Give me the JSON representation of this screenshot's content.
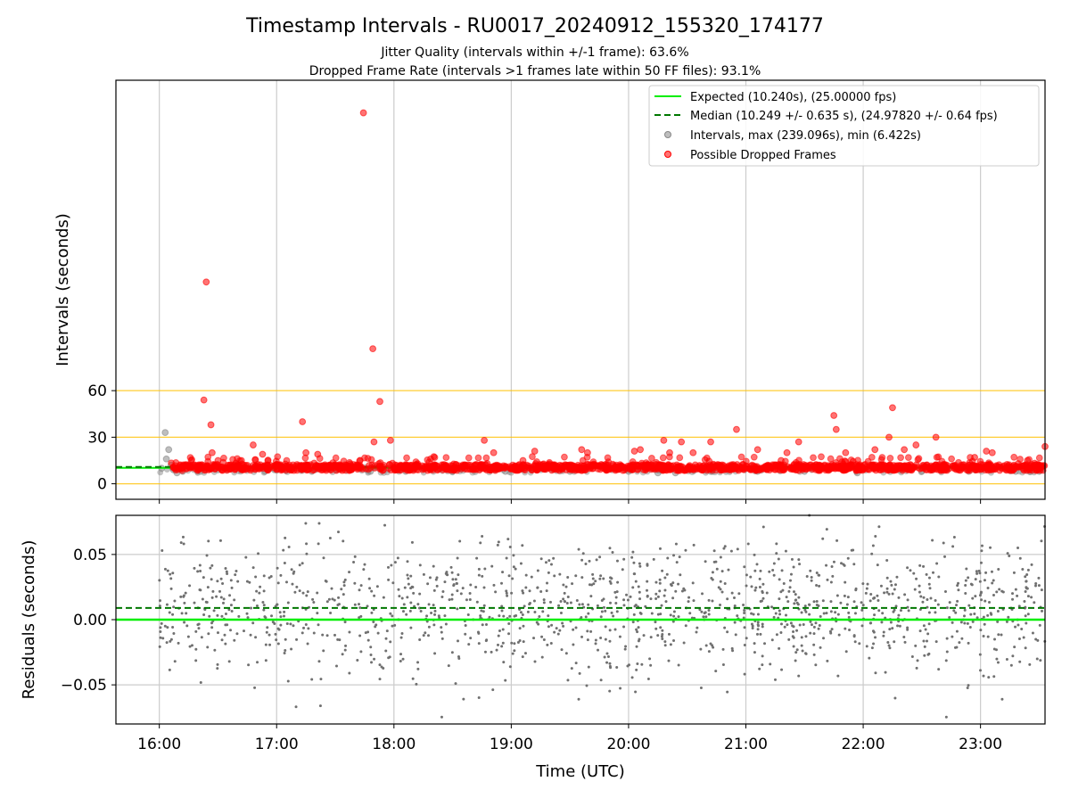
{
  "figure": {
    "title": "Timestamp Intervals - RU0017_20240912_155320_174177",
    "subtitle_1": "Jitter Quality (intervals within +/-1 frame): 63.6%",
    "subtitle_2": "Dropped Frame Rate (intervals >1 frames late within 50 FF files): 93.1%"
  },
  "colors": {
    "expected": "#00ee00",
    "median": "#007700",
    "intervals": "#888888",
    "dropped": "#ff0000",
    "threshold": "#ffc000",
    "residuals": "#707070",
    "grid": "#cccccc"
  },
  "chart_data": [
    {
      "type": "scatter",
      "name": "intervals-panel",
      "xlabel": "",
      "ylabel": "Intervals (seconds)",
      "x_unit": "hours UTC",
      "xlim": [
        15.63,
        23.55
      ],
      "ylim": [
        -10,
        260
      ],
      "yticks": [
        0,
        30,
        60
      ],
      "ytick_labels": [
        "0",
        "30",
        "60"
      ],
      "xticks": [
        16,
        17,
        18,
        19,
        20,
        21,
        22,
        23
      ],
      "xtick_labels": [
        "16:00",
        "17:00",
        "18:00",
        "19:00",
        "20:00",
        "21:00",
        "22:00",
        "23:00"
      ],
      "grid": "vertical",
      "threshold_lines": [
        0,
        30,
        60
      ],
      "expected_line": 10.24,
      "median_line": 10.249,
      "legend_position": "upper-right",
      "legend": [
        {
          "label": "Expected (10.240s), (25.00000 fps)",
          "kind": "solid-line",
          "color": "#00ee00"
        },
        {
          "label": "Median (10.249 +/- 0.635 s), (24.97820 +/- 0.64 fps)",
          "kind": "dashed-line",
          "color": "#007700"
        },
        {
          "label": "Intervals, max (239.096s), min (6.422s)",
          "kind": "marker",
          "color": "#888888"
        },
        {
          "label": "Possible Dropped Frames",
          "kind": "marker",
          "color": "#ff0000"
        }
      ],
      "series": [
        {
          "name": "Intervals, max (239.096s), min (6.422s)",
          "color": "#888888",
          "points": [
            [
              16.05,
              33
            ],
            [
              16.08,
              22
            ],
            [
              16.06,
              16
            ],
            [
              16.1,
              12
            ],
            [
              16.12,
              9
            ],
            [
              16.15,
              7
            ],
            [
              16.02,
              10
            ],
            [
              16.2,
              8
            ],
            [
              16.35,
              8
            ],
            [
              16.5,
              9
            ],
            [
              16.9,
              8
            ],
            [
              17.3,
              8
            ],
            [
              17.8,
              8
            ],
            [
              18.1,
              8
            ],
            [
              18.5,
              8
            ],
            [
              18.95,
              8
            ],
            [
              19.5,
              8
            ],
            [
              20.0,
              8
            ],
            [
              20.25,
              7
            ],
            [
              20.4,
              7
            ],
            [
              20.7,
              8
            ],
            [
              21.1,
              8
            ],
            [
              21.5,
              8
            ],
            [
              21.95,
              7
            ],
            [
              22.5,
              8
            ],
            [
              22.9,
              8
            ],
            [
              23.3,
              8
            ],
            [
              23.5,
              8
            ]
          ]
        },
        {
          "name": "Possible Dropped Frames",
          "color": "#ff0000",
          "points": [
            [
              17.74,
              239
            ],
            [
              16.4,
              130
            ],
            [
              17.82,
              87
            ],
            [
              16.38,
              54
            ],
            [
              17.88,
              53
            ],
            [
              16.44,
              38
            ],
            [
              17.22,
              40
            ],
            [
              21.75,
              44
            ],
            [
              22.25,
              49
            ],
            [
              21.77,
              35
            ],
            [
              20.92,
              35
            ],
            [
              17.83,
              27
            ],
            [
              17.97,
              28
            ],
            [
              18.77,
              28
            ],
            [
              20.3,
              28
            ],
            [
              20.45,
              27
            ],
            [
              20.7,
              27
            ],
            [
              21.45,
              27
            ],
            [
              22.22,
              30
            ],
            [
              22.62,
              30
            ],
            [
              22.45,
              25
            ],
            [
              16.8,
              25
            ],
            [
              20.05,
              21
            ],
            [
              20.1,
              22
            ],
            [
              16.45,
              20
            ],
            [
              16.88,
              19
            ],
            [
              17.25,
              20
            ],
            [
              17.35,
              19
            ],
            [
              18.85,
              20
            ],
            [
              19.2,
              21
            ],
            [
              19.6,
              22
            ],
            [
              19.65,
              20
            ],
            [
              20.35,
              20
            ],
            [
              20.55,
              20
            ],
            [
              21.1,
              22
            ],
            [
              21.35,
              20
            ],
            [
              21.85,
              20
            ],
            [
              22.1,
              22
            ],
            [
              22.35,
              22
            ],
            [
              23.05,
              21
            ],
            [
              23.1,
              20
            ],
            [
              23.55,
              24
            ],
            [
              22.95,
              17
            ],
            [
              23.4,
              15
            ],
            [
              16.5,
              15
            ],
            [
              16.7,
              15
            ],
            [
              18.3,
              14
            ],
            [
              19.1,
              15
            ],
            [
              21.3,
              15
            ]
          ],
          "band": {
            "x_start": 16.1,
            "x_end": 23.55,
            "y_min": 8.5,
            "y_max": 12.5
          }
        }
      ]
    },
    {
      "type": "scatter",
      "name": "residuals-panel",
      "xlabel": "Time (UTC)",
      "ylabel": "Residuals (seconds)",
      "xlim": [
        15.63,
        23.55
      ],
      "ylim": [
        -0.08,
        0.08
      ],
      "yticks": [
        -0.05,
        0.0,
        0.05
      ],
      "ytick_labels": [
        "−0.05",
        "0.00",
        "0.05"
      ],
      "xticks": [
        16,
        17,
        18,
        19,
        20,
        21,
        22,
        23
      ],
      "xtick_labels": [
        "16:00",
        "17:00",
        "18:00",
        "19:00",
        "20:00",
        "21:00",
        "22:00",
        "23:00"
      ],
      "grid": "both",
      "expected_line": 0.0,
      "median_line": 0.009,
      "series": [
        {
          "name": "Residuals",
          "color": "#707070",
          "x_range": [
            16.0,
            23.55
          ],
          "y_range": [
            -0.08,
            0.08
          ],
          "mean": 0.009,
          "point_count": 1400
        }
      ]
    }
  ]
}
